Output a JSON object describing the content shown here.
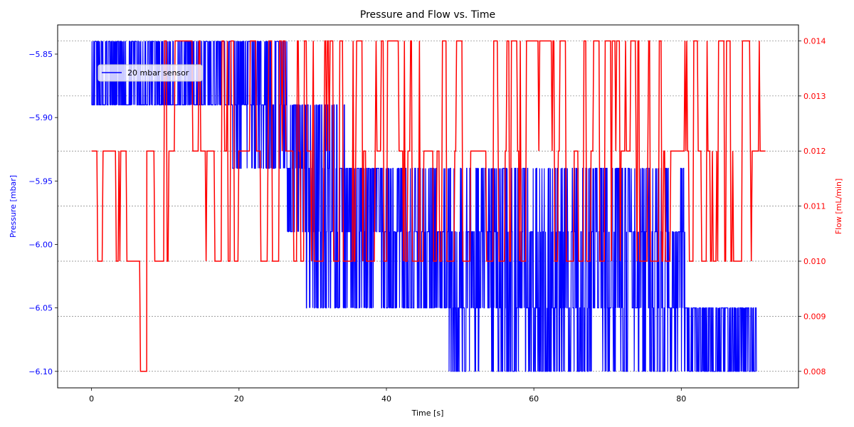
{
  "chart_data": {
    "type": "line",
    "title": "Pressure and Flow vs. Time",
    "xlabel": "Time [s]",
    "xlim": [
      -4.6,
      95.9
    ],
    "x_ticks": [
      0,
      20,
      40,
      60,
      80
    ],
    "grid": "horizontal dashed, right axis",
    "legend_position": "upper-left",
    "axes": {
      "left": {
        "label": "Pressure [mbar]",
        "color": "#0000ff",
        "ylim": [
          -6.113,
          -5.827
        ],
        "ticks": [
          -5.85,
          -5.9,
          -5.95,
          -6.0,
          -6.05,
          -6.1
        ],
        "tick_labels": [
          "−5.85",
          "−5.90",
          "−5.95",
          "−6.00",
          "−6.05",
          "−6.10"
        ]
      },
      "right": {
        "label": "Flow [mL/min]",
        "color": "#ff0000",
        "ylim": [
          0.0077,
          0.01429
        ],
        "ticks": [
          0.008,
          0.009,
          0.01,
          0.011,
          0.012,
          0.013,
          0.014
        ],
        "tick_labels": [
          "0.008",
          "0.009",
          "0.010",
          "0.011",
          "0.012",
          "0.013",
          "0.014"
        ]
      }
    },
    "series": [
      {
        "name": "20 mbar sensor",
        "axis": "left",
        "color": "#0000ff",
        "levels": [
          -5.84,
          -5.89,
          -5.94,
          -5.99,
          -6.05,
          -6.1
        ],
        "segments": [
          {
            "t0": 0.0,
            "t1": 19.0,
            "levels": [
              -5.84,
              -5.89
            ]
          },
          {
            "t0": 19.0,
            "t1": 26.5,
            "levels": [
              -5.84,
              -5.89,
              -5.94
            ]
          },
          {
            "t0": 26.5,
            "t1": 29.0,
            "levels": [
              -5.89,
              -5.94,
              -5.99
            ]
          },
          {
            "t0": 29.0,
            "t1": 34.5,
            "levels": [
              -5.89,
              -5.94,
              -5.99,
              -6.05
            ]
          },
          {
            "t0": 34.5,
            "t1": 48.5,
            "levels": [
              -5.94,
              -5.99,
              -6.05
            ]
          },
          {
            "t0": 48.5,
            "t1": 63.5,
            "levels": [
              -5.94,
              -5.99,
              -6.05,
              -6.1
            ]
          },
          {
            "t0": 63.5,
            "t1": 80.5,
            "levels": [
              -5.94,
              -5.99,
              -6.05,
              -6.1
            ]
          },
          {
            "t0": 80.5,
            "t1": 90.2,
            "levels": [
              -6.05,
              -6.1
            ]
          }
        ]
      },
      {
        "name": "",
        "axis": "right",
        "color": "#ff0000",
        "levels": [
          0.008,
          0.01,
          0.012,
          0.014
        ],
        "segments": [
          {
            "t0": 0.0,
            "t1": 5.8,
            "levels": [
              0.01,
              0.012
            ]
          },
          {
            "t0": 5.8,
            "t1": 7.5,
            "levels": [
              0.008,
              0.01
            ]
          },
          {
            "t0": 7.5,
            "t1": 26.0,
            "levels": [
              0.01,
              0.012,
              0.014
            ]
          },
          {
            "t0": 26.0,
            "t1": 50.0,
            "levels": [
              0.01,
              0.012,
              0.014
            ]
          },
          {
            "t0": 50.0,
            "t1": 74.5,
            "levels": [
              0.01,
              0.012,
              0.014
            ]
          },
          {
            "t0": 74.5,
            "t1": 91.5,
            "levels": [
              0.01,
              0.012,
              0.014
            ]
          }
        ]
      }
    ]
  }
}
